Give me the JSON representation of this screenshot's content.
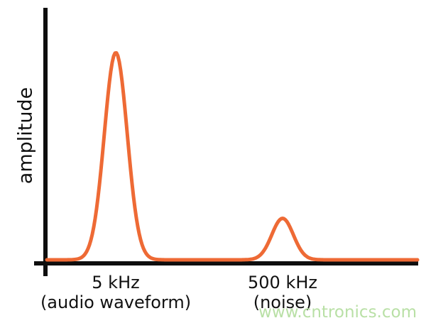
{
  "chart_data": {
    "type": "line",
    "title": "",
    "xlabel": "",
    "ylabel": "amplitude",
    "grid": false,
    "legend": false,
    "background_color": "#ffffff",
    "axis_color": "#0e0e0e",
    "curve_color": "#ee6a35",
    "ylim": [
      0,
      1.06
    ],
    "x_ticks": [
      "5 kHz",
      "500 kHz"
    ],
    "peaks": [
      {
        "frequency_label": "5 kHz",
        "description": "(audio waveform)",
        "relative_amplitude": 1.0,
        "center_frac": 0.186,
        "sigma_frac": 0.031
      },
      {
        "frequency_label": "500 kHz",
        "description": "(noise)",
        "relative_amplitude": 0.2,
        "center_frac": 0.636,
        "sigma_frac": 0.029
      }
    ]
  },
  "watermark": {
    "text": "www.cntronics.com",
    "color": "#b9e0a6"
  }
}
